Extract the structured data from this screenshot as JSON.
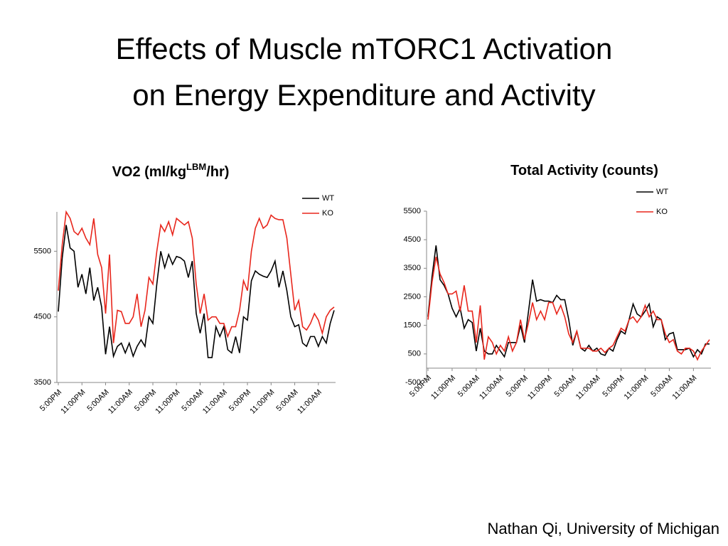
{
  "slide": {
    "title": [
      "Effects of Muscle mTORC1 Activation",
      "on Energy Expenditure and Activity"
    ],
    "credit": "Nathan Qi, University of Michigan"
  },
  "chart_data": [
    {
      "type": "line",
      "title": [
        "VO2 (ml/kg",
        "LBM",
        "/hr)"
      ],
      "ylim": [
        3500,
        6100
      ],
      "yticks": [
        3500,
        4500,
        5500
      ],
      "grid": false,
      "legend": "top-right",
      "categories": [
        "5:00PM",
        null,
        null,
        null,
        null,
        null,
        "11:00PM",
        null,
        null,
        null,
        null,
        null,
        "5:00AM",
        null,
        null,
        null,
        null,
        null,
        "11:00AM",
        null,
        null,
        null,
        null,
        null,
        "5:00PM",
        null,
        null,
        null,
        null,
        null,
        "11:00PM",
        null,
        null,
        null,
        null,
        null,
        "5:00AM",
        null,
        null,
        null,
        null,
        null,
        "11:00AM",
        null,
        null,
        null,
        null,
        null,
        "5:00PM",
        null,
        null,
        null,
        null,
        null,
        "11:00PM",
        null,
        null,
        null,
        null,
        null,
        "5:00AM",
        null,
        null,
        null,
        null,
        null,
        "11:00AM",
        null,
        null,
        null,
        null
      ],
      "series": [
        {
          "name": "WT",
          "color": "#000000",
          "values": [
            4580,
            5400,
            5900,
            5550,
            5500,
            4950,
            5150,
            4850,
            5250,
            4750,
            4950,
            4650,
            3930,
            4350,
            3900,
            4050,
            4100,
            3950,
            4100,
            3900,
            4050,
            4150,
            4050,
            4500,
            4400,
            5000,
            5500,
            5250,
            5450,
            5300,
            5420,
            5400,
            5350,
            5100,
            5350,
            4550,
            4250,
            4550,
            3880,
            3880,
            4350,
            4200,
            4350,
            4000,
            3950,
            4200,
            3950,
            4500,
            4450,
            5050,
            5200,
            5150,
            5120,
            5100,
            5200,
            5350,
            4950,
            5200,
            4900,
            4500,
            4350,
            4380,
            4100,
            4050,
            4200,
            4200,
            4050,
            4200,
            4100,
            4400,
            4600
          ]
        },
        {
          "name": "KO",
          "color": "#e8261c",
          "values": [
            4900,
            5600,
            6100,
            6000,
            5800,
            5750,
            5850,
            5700,
            5600,
            6000,
            5450,
            5250,
            4550,
            5450,
            4100,
            4600,
            4580,
            4400,
            4400,
            4500,
            4850,
            4350,
            4600,
            5100,
            5000,
            5500,
            5900,
            5800,
            5950,
            5750,
            6000,
            5950,
            5900,
            5950,
            5700,
            5000,
            4550,
            4850,
            4450,
            4500,
            4500,
            4400,
            4400,
            4200,
            4350,
            4350,
            4600,
            5050,
            4900,
            5500,
            5850,
            6000,
            5850,
            5900,
            6050,
            6000,
            5980,
            5980,
            5700,
            5150,
            4600,
            4750,
            4350,
            4300,
            4400,
            4550,
            4450,
            4250,
            4500,
            4600,
            4650
          ]
        }
      ]
    },
    {
      "type": "line",
      "title": [
        "Total Activity (counts)"
      ],
      "ylim": [
        -500,
        5500
      ],
      "yticks": [
        -500,
        500,
        1500,
        2500,
        3500,
        4500,
        5500
      ],
      "grid": false,
      "legend": "top-right",
      "categories": [
        "5:00PM",
        null,
        null,
        null,
        null,
        null,
        "11:00PM",
        null,
        null,
        null,
        null,
        null,
        "5:00AM",
        null,
        null,
        null,
        null,
        null,
        "11:00AM",
        null,
        null,
        null,
        null,
        null,
        "5:00PM",
        null,
        null,
        null,
        null,
        null,
        "11:00PM",
        null,
        null,
        null,
        null,
        null,
        "5:00AM",
        null,
        null,
        null,
        null,
        null,
        "11:00AM",
        null,
        null,
        null,
        null,
        null,
        "5:00PM",
        null,
        null,
        null,
        null,
        null,
        "11:00PM",
        null,
        null,
        null,
        null,
        null,
        "5:00AM",
        null,
        null,
        null,
        null,
        null,
        "11:00AM",
        null,
        null,
        null,
        null
      ],
      "series": [
        {
          "name": "WT",
          "color": "#000000",
          "values": [
            1800,
            3200,
            4300,
            3100,
            2900,
            2600,
            2100,
            1800,
            2100,
            1400,
            1700,
            1600,
            600,
            1400,
            600,
            500,
            500,
            800,
            600,
            400,
            900,
            900,
            900,
            1500,
            900,
            2000,
            3100,
            2350,
            2400,
            2350,
            2350,
            2300,
            2550,
            2400,
            2400,
            1700,
            800,
            1300,
            700,
            600,
            800,
            600,
            700,
            500,
            450,
            700,
            600,
            1000,
            1300,
            1200,
            1700,
            2250,
            1900,
            1800,
            2000,
            2250,
            1450,
            1800,
            1700,
            1000,
            1200,
            1250,
            650,
            650,
            650,
            700,
            400,
            650,
            500,
            850,
            850
          ]
        },
        {
          "name": "KO",
          "color": "#e8261c",
          "values": [
            1700,
            3000,
            3900,
            3300,
            3000,
            2600,
            2600,
            2700,
            2000,
            2900,
            2000,
            2000,
            900,
            2200,
            300,
            1100,
            900,
            500,
            800,
            600,
            1100,
            600,
            900,
            1700,
            1000,
            1600,
            2300,
            1700,
            2000,
            1700,
            2300,
            2300,
            1900,
            2200,
            1800,
            1200,
            900,
            1300,
            700,
            700,
            700,
            600,
            600,
            700,
            550,
            700,
            800,
            1100,
            1400,
            1300,
            1700,
            1800,
            1600,
            1800,
            2200,
            1800,
            2000,
            1700,
            1700,
            1200,
            900,
            1000,
            600,
            500,
            700,
            700,
            600,
            300,
            600,
            800,
            1000
          ]
        }
      ]
    }
  ]
}
